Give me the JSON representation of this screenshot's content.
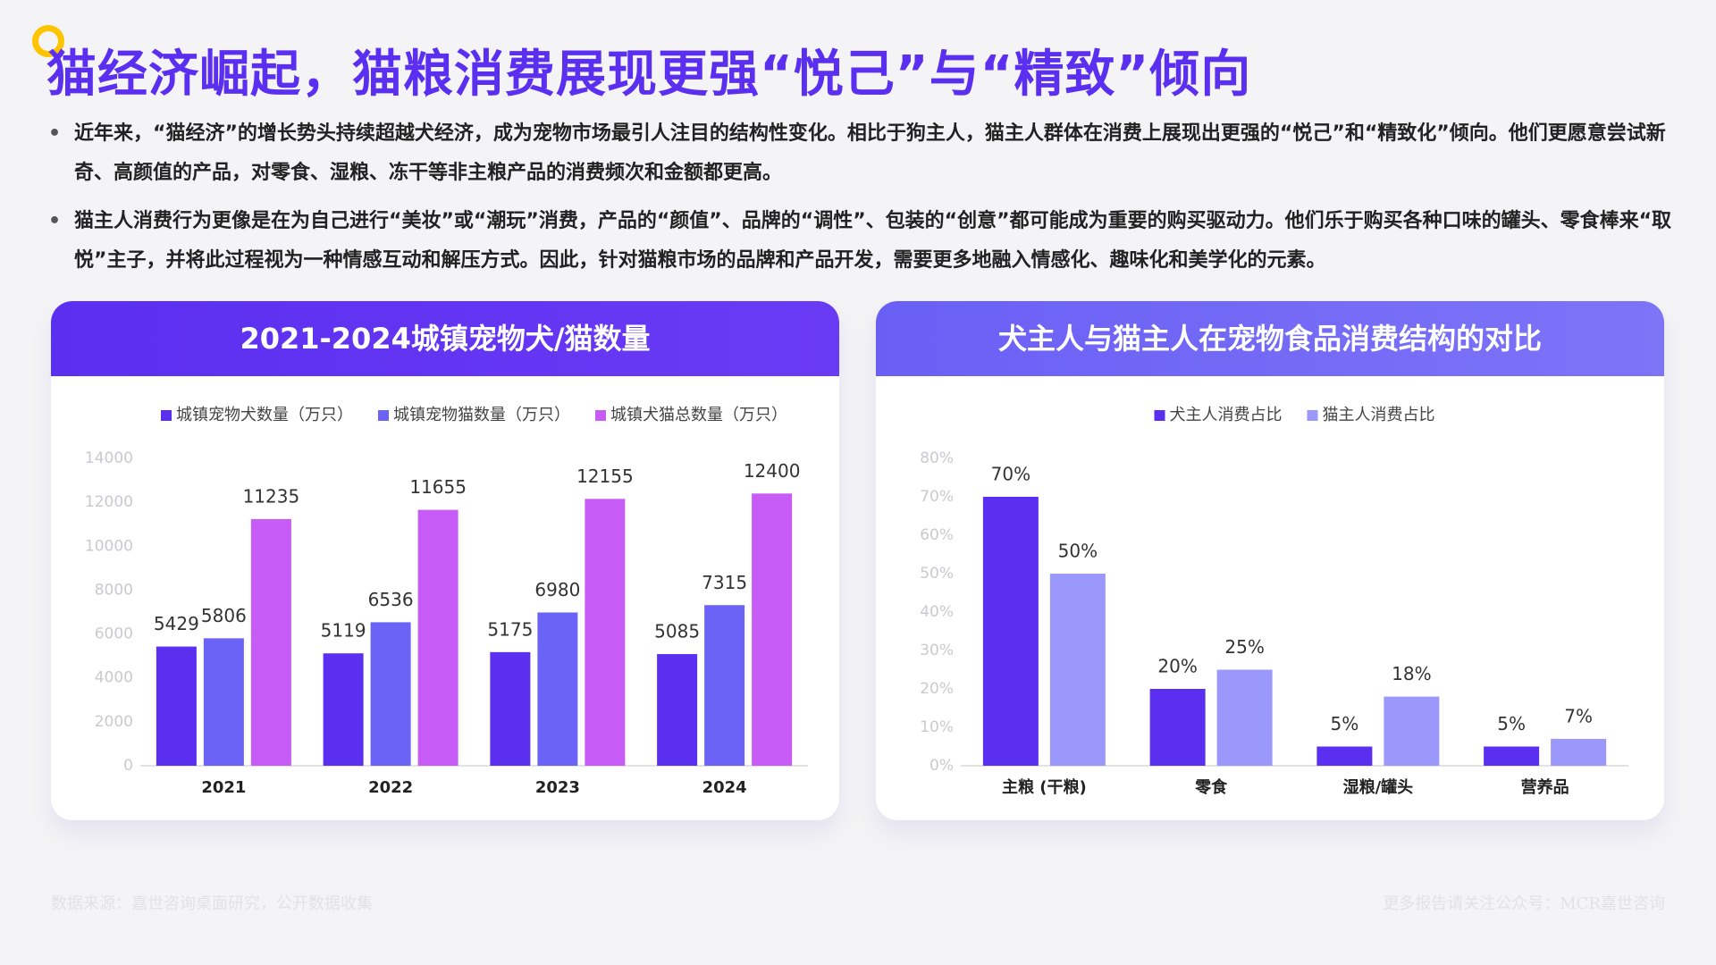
{
  "header": {
    "title": "猫经济崛起，猫粮消费展现更强“悦己”与“精致”倾向"
  },
  "bullets": [
    "近年来，“猫经济”的增长势头持续超越犬经济，成为宠物市场最引人注目的结构性变化。相比于狗主人，猫主人群体在消费上展现出更强的“悦己”和“精致化”倾向。他们更愿意尝试新奇、高颜值的产品，对零食、湿粮、冻干等非主粮产品的消费频次和金额都更高。",
    "猫主人消费行为更像是在为自己进行“美妆”或“潮玩”消费，产品的“颜值”、品牌的“调性”、包装的“创意”都可能成为重要的购买驱动力。他们乐于购买各种口味的罐头、零食棒来“取悦”主子，并将此过程视为一种情感互动和解压方式。因此，针对猫粮市场的品牌和产品开发，需要更多地融入情感化、趣味化和美学化的元素。"
  ],
  "chart_data": [
    {
      "type": "bar",
      "title": "2021-2024城镇宠物犬/猫数量",
      "categories": [
        "2021",
        "2022",
        "2023",
        "2024"
      ],
      "series": [
        {
          "name": "城镇宠物犬数量（万只）",
          "color": "#5b2ff0",
          "values": [
            5429,
            5119,
            5175,
            5085
          ]
        },
        {
          "name": "城镇宠物猫数量（万只）",
          "color": "#6a63f6",
          "values": [
            5806,
            6536,
            6980,
            7315
          ]
        },
        {
          "name": "城镇犬猫总数量（万只）",
          "color": "#c65cf5",
          "values": [
            11235,
            11655,
            12155,
            12400
          ]
        }
      ],
      "ylim": [
        0,
        14000
      ],
      "yticks": [
        0,
        2000,
        4000,
        6000,
        8000,
        10000,
        12000,
        14000
      ],
      "grid": false,
      "legend": "top"
    },
    {
      "type": "bar",
      "title": "犬主人与猫主人在宠物食品消费结构的对比",
      "categories": [
        "主粮 (干粮)",
        "零食",
        "湿粮/罐头",
        "营养品"
      ],
      "series": [
        {
          "name": "犬主人消费占比",
          "color": "#5b2ff0",
          "values": [
            70,
            20,
            5,
            5
          ],
          "value_labels": [
            "70%",
            "20%",
            "5%",
            "5%"
          ]
        },
        {
          "name": "猫主人消费占比",
          "color": "#9b98fb",
          "values": [
            50,
            25,
            18,
            7
          ],
          "value_labels": [
            "50%",
            "25%",
            "18%",
            "7%"
          ]
        }
      ],
      "ylim": [
        0,
        80
      ],
      "yticks": [
        {
          "value": 0,
          "label": "0%"
        },
        {
          "value": 10,
          "label": "10%"
        },
        {
          "value": 20,
          "label": "20%"
        },
        {
          "value": 30,
          "label": "30%"
        },
        {
          "value": 40,
          "label": "40%"
        },
        {
          "value": 50,
          "label": "50%"
        },
        {
          "value": 60,
          "label": "60%"
        },
        {
          "value": 70,
          "label": "70%"
        },
        {
          "value": 80,
          "label": "80%"
        }
      ],
      "grid": false,
      "legend": "top"
    }
  ],
  "footer": {
    "source": "数据来源：嘉世咨询桌面研究，公开数据收集",
    "note": "更多报告请关注公众号：MCR嘉世咨询"
  }
}
